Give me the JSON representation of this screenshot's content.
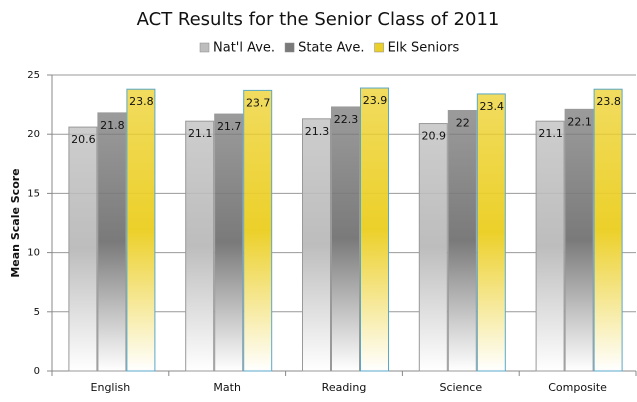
{
  "chart_data": {
    "type": "bar",
    "title": "ACT Results for the Senior Class of 2011",
    "y_label": "Mean Scale Score",
    "categories": [
      "English",
      "Math",
      "Reading",
      "Science",
      "Composite"
    ],
    "series": [
      {
        "name": "Nat'l Ave.",
        "color": "#bdbdbd",
        "values": [
          20.6,
          21.1,
          21.3,
          20.9,
          21.1
        ]
      },
      {
        "name": "State Ave.",
        "color": "#7a7a7a",
        "values": [
          21.8,
          21.7,
          22.3,
          22,
          22.1
        ]
      },
      {
        "name": "Elk Seniors",
        "color": "#ecd02a",
        "values": [
          23.8,
          23.7,
          23.9,
          23.4,
          23.8
        ]
      }
    ],
    "ylim": [
      0,
      25
    ],
    "yticks": [
      0,
      5,
      10,
      15,
      20,
      25
    ],
    "grid": true,
    "legend": "top"
  }
}
